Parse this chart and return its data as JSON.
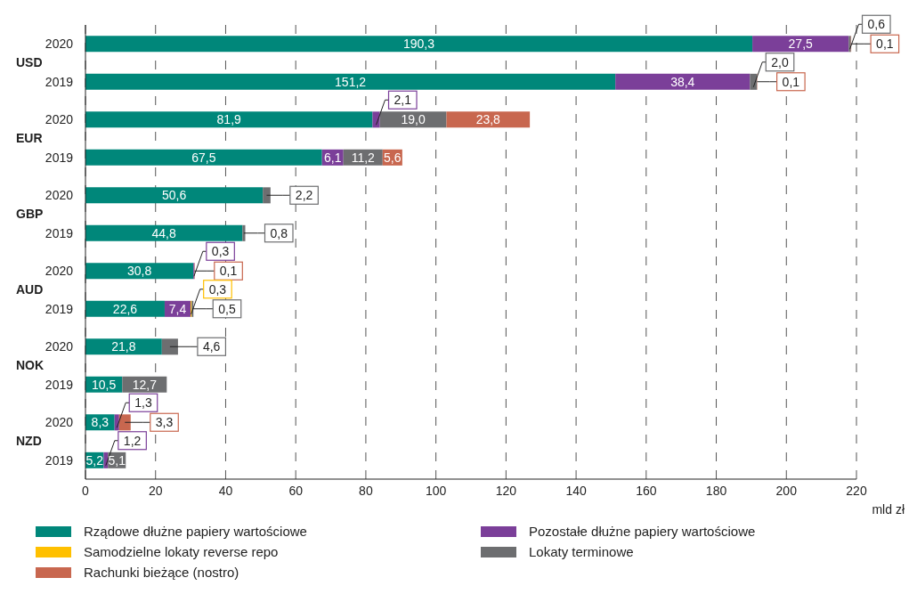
{
  "chart_data": {
    "type": "bar",
    "orientation": "horizontal",
    "stacked": true,
    "categories": [
      "2020",
      "2019",
      "2020",
      "2019",
      "2020",
      "2019",
      "2020",
      "2019",
      "2020",
      "2019",
      "2020",
      "2019"
    ],
    "annotations": [
      "USD",
      "EUR",
      "GBP",
      "AUD",
      "NOK",
      "NZD"
    ],
    "xlabel": "mld zł",
    "xlim": [
      0,
      220
    ],
    "xticks": [
      0,
      20,
      40,
      60,
      80,
      100,
      120,
      140,
      160,
      180,
      200,
      220
    ],
    "grid": "x",
    "legend": "bottom",
    "series": [
      {
        "name": "Rządowe dłużne papiery wartościowe",
        "color": "#00877a",
        "values": [
          190.3,
          151.2,
          81.9,
          67.5,
          50.6,
          44.8,
          30.8,
          22.6,
          21.8,
          10.5,
          8.3,
          5.2
        ],
        "value_labels": [
          "190,3",
          "151,2",
          "81,9",
          "67,5",
          "50,6",
          "44,8",
          "30,8",
          "22,6",
          "21,8",
          "10,5",
          "8,3",
          "5,2"
        ]
      },
      {
        "name": "Pozostałe dłużne papiery wartościowe",
        "color": "#7b3f99",
        "values": [
          27.5,
          38.4,
          2.1,
          6.1,
          null,
          null,
          0.3,
          7.4,
          null,
          null,
          1.3,
          1.2
        ],
        "value_labels": [
          "27,5",
          "38,4",
          "2,1",
          "6,1",
          null,
          null,
          "0,3",
          "7,4",
          null,
          null,
          "1,3",
          "1,2"
        ]
      },
      {
        "name": "Samodzielne lokaty reverse repo",
        "color": "#ffc000",
        "values": [
          null,
          null,
          null,
          null,
          null,
          null,
          null,
          0.3,
          null,
          null,
          null,
          null
        ],
        "value_labels": [
          null,
          null,
          null,
          null,
          null,
          null,
          null,
          "0,3",
          null,
          null,
          null,
          null
        ]
      },
      {
        "name": "Lokaty terminowe",
        "color": "#6d6e70",
        "values": [
          0.6,
          2.0,
          19.0,
          11.2,
          2.2,
          0.8,
          null,
          0.5,
          4.6,
          12.7,
          null,
          5.1
        ],
        "value_labels": [
          "0,6",
          "2,0",
          "19,0",
          "11,2",
          "2,2",
          "0,8",
          null,
          "0,5",
          "4,6",
          "12,7",
          null,
          "5,1"
        ]
      },
      {
        "name": "Rachunki bieżące (nostro)",
        "color": "#c8674f",
        "values": [
          0.1,
          0.1,
          23.8,
          5.6,
          null,
          null,
          0.1,
          null,
          null,
          null,
          3.3,
          null
        ],
        "value_labels": [
          "0,1",
          "0,1",
          "23,8",
          "5,6",
          null,
          null,
          "0,1",
          null,
          null,
          null,
          "3,3",
          null
        ]
      }
    ]
  }
}
